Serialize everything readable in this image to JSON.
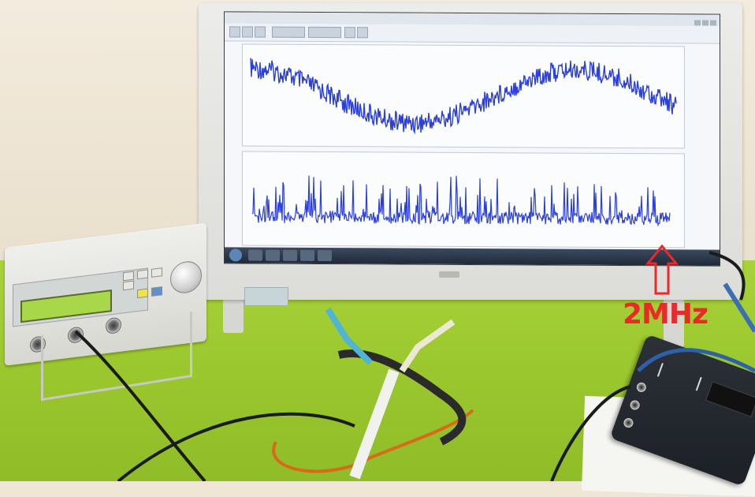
{
  "scene": {
    "description_free": true
  },
  "annotation": {
    "label": "2MHz",
    "arrow_icon": "up-arrow-outline-icon"
  },
  "screen_waveforms": {
    "top_trace": "sine-with-noise",
    "bottom_trace": "flat-with-spikes"
  },
  "colors": {
    "trace": "#2b3fe0",
    "annotation": "#ea2a2a",
    "desk": "#a9d23a"
  }
}
